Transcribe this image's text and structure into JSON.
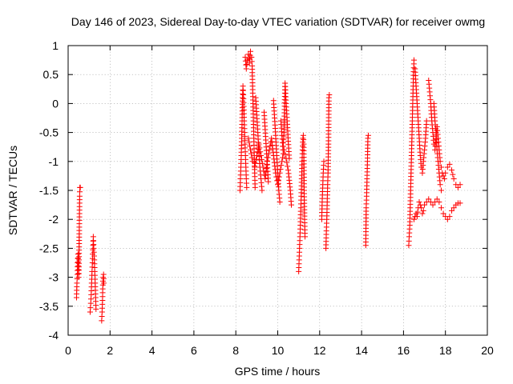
{
  "chart_data": {
    "type": "scatter",
    "title": "Day 146 of 2023, Sidereal Day-to-day VTEC variation (SDTVAR) for receiver owmg",
    "xlabel": "GPS time / hours",
    "ylabel": "SDTVAR / TECUs",
    "xlim": [
      0,
      20
    ],
    "ylim": [
      -4,
      1
    ],
    "xticks": [
      0,
      2,
      4,
      6,
      8,
      10,
      12,
      14,
      16,
      18,
      20
    ],
    "xtick_labels": [
      "0",
      "2",
      "4",
      "6",
      "8",
      "10",
      "12",
      "14",
      "16",
      "18",
      "20"
    ],
    "yticks": [
      1,
      0.5,
      0,
      -0.5,
      -1,
      -1.5,
      -2,
      -2.5,
      -3,
      -3.5,
      -4
    ],
    "ytick_labels": [
      "1",
      "0.5",
      "0",
      "-0.5",
      "-1",
      "-1.5",
      "-2",
      "-2.5",
      "-3",
      "-3.5",
      "-4"
    ],
    "grid": true,
    "marker": "+",
    "color": "#ff0000",
    "series": [
      {
        "name": "SDTVAR",
        "segments": [
          [
            [
              0.4,
              -3.35
            ],
            [
              0.42,
              -3.1
            ],
            [
              0.44,
              -2.95
            ],
            [
              0.45,
              -2.75
            ],
            [
              0.47,
              -2.6
            ],
            [
              0.49,
              -2.8
            ],
            [
              0.5,
              -3.0
            ],
            [
              0.52,
              -2.7
            ],
            [
              0.53,
              -2.25
            ],
            [
              0.54,
              -1.9
            ],
            [
              0.55,
              -1.6
            ],
            [
              0.56,
              -1.45
            ],
            [
              0.58,
              -1.45
            ]
          ],
          [
            [
              1.05,
              -3.6
            ],
            [
              1.08,
              -3.45
            ],
            [
              1.1,
              -3.3
            ],
            [
              1.12,
              -3.1
            ],
            [
              1.14,
              -2.9
            ],
            [
              1.16,
              -2.75
            ],
            [
              1.17,
              -2.6
            ],
            [
              1.19,
              -2.45
            ],
            [
              1.2,
              -2.3
            ],
            [
              1.22,
              -2.5
            ],
            [
              1.25,
              -2.7
            ],
            [
              1.27,
              -2.9
            ],
            [
              1.29,
              -3.1
            ],
            [
              1.31,
              -3.35
            ],
            [
              1.33,
              -3.55
            ]
          ],
          [
            [
              1.6,
              -3.75
            ],
            [
              1.62,
              -3.6
            ],
            [
              1.64,
              -3.4
            ],
            [
              1.65,
              -3.2
            ],
            [
              1.67,
              -3.0
            ],
            [
              1.69,
              -2.95
            ],
            [
              1.7,
              -3.1
            ]
          ],
          [
            [
              8.2,
              -1.5
            ],
            [
              8.22,
              -1.3
            ],
            [
              8.24,
              -1.1
            ],
            [
              8.26,
              -0.9
            ],
            [
              8.28,
              -0.6
            ],
            [
              8.3,
              -0.3
            ],
            [
              8.32,
              0.1
            ],
            [
              8.34,
              0.3
            ],
            [
              8.36,
              0.15
            ],
            [
              8.38,
              -0.05
            ],
            [
              8.4,
              -0.3
            ],
            [
              8.42,
              -0.5
            ],
            [
              8.44,
              -0.7
            ],
            [
              8.46,
              -0.9
            ],
            [
              8.48,
              -1.1
            ],
            [
              8.5,
              -1.3
            ],
            [
              8.52,
              -1.45
            ]
          ],
          [
            [
              8.45,
              0.8
            ],
            [
              8.5,
              0.6
            ],
            [
              8.55,
              0.75
            ],
            [
              8.6,
              0.85
            ],
            [
              8.65,
              0.7
            ],
            [
              8.7,
              0.9
            ],
            [
              8.75,
              0.8
            ],
            [
              8.78,
              0.65
            ],
            [
              8.8,
              0.3
            ],
            [
              8.82,
              0.0
            ],
            [
              8.84,
              -0.3
            ],
            [
              8.86,
              -0.6
            ],
            [
              8.88,
              -0.9
            ],
            [
              8.9,
              -1.2
            ],
            [
              8.92,
              -1.45
            ]
          ],
          [
            [
              8.6,
              -0.6
            ],
            [
              8.7,
              -0.8
            ],
            [
              8.8,
              -1.0
            ],
            [
              8.9,
              -1.1
            ],
            [
              9.0,
              -0.9
            ],
            [
              9.1,
              -0.7
            ],
            [
              9.2,
              -0.9
            ],
            [
              9.3,
              -1.1
            ],
            [
              9.4,
              -1.3
            ],
            [
              9.5,
              -1.0
            ],
            [
              9.6,
              -0.8
            ],
            [
              9.7,
              -0.6
            ],
            [
              9.8,
              -0.9
            ],
            [
              9.9,
              -1.2
            ],
            [
              10.0,
              -1.4
            ],
            [
              10.1,
              -1.2
            ],
            [
              10.2,
              -1.0
            ],
            [
              10.3,
              -0.8
            ],
            [
              10.4,
              -0.95
            ],
            [
              10.5,
              -1.15
            ],
            [
              10.6,
              -1.5
            ],
            [
              10.65,
              -1.75
            ]
          ],
          [
            [
              8.95,
              0.1
            ],
            [
              9.0,
              -0.2
            ],
            [
              9.05,
              -0.5
            ],
            [
              9.1,
              -0.85
            ],
            [
              9.15,
              -1.1
            ],
            [
              9.2,
              -1.3
            ],
            [
              9.25,
              -1.5
            ]
          ],
          [
            [
              9.35,
              -0.15
            ],
            [
              9.4,
              -0.45
            ],
            [
              9.45,
              -0.75
            ],
            [
              9.5,
              -1.05
            ],
            [
              9.55,
              -1.35
            ]
          ],
          [
            [
              9.8,
              0.05
            ],
            [
              9.85,
              -0.25
            ],
            [
              9.9,
              -0.55
            ],
            [
              9.95,
              -0.9
            ],
            [
              10.0,
              -1.2
            ],
            [
              10.05,
              -1.5
            ],
            [
              10.1,
              -1.7
            ]
          ],
          [
            [
              10.15,
              -0.3
            ],
            [
              10.2,
              -0.55
            ],
            [
              10.25,
              -0.8
            ],
            [
              10.3,
              -0.5
            ],
            [
              10.35,
              0.35
            ],
            [
              10.4,
              0.0
            ],
            [
              10.45,
              -0.3
            ],
            [
              10.5,
              -0.65
            ],
            [
              10.55,
              -0.95
            ]
          ],
          [
            [
              11.0,
              -2.9
            ],
            [
              11.02,
              -2.7
            ],
            [
              11.04,
              -2.5
            ],
            [
              11.06,
              -2.3
            ],
            [
              11.08,
              -2.1
            ],
            [
              11.1,
              -1.8
            ],
            [
              11.12,
              -1.6
            ],
            [
              11.14,
              -1.3
            ],
            [
              11.16,
              -1.0
            ],
            [
              11.18,
              -0.8
            ],
            [
              11.2,
              -0.6
            ],
            [
              11.22,
              -0.55
            ],
            [
              11.24,
              -0.7
            ],
            [
              11.26,
              -1.5
            ],
            [
              11.28,
              -2.0
            ],
            [
              11.3,
              -2.3
            ]
          ],
          [
            [
              12.1,
              -2.0
            ],
            [
              12.12,
              -1.7
            ],
            [
              12.15,
              -1.4
            ],
            [
              12.17,
              -1.2
            ],
            [
              12.2,
              -1.0
            ]
          ],
          [
            [
              12.3,
              -2.5
            ],
            [
              12.32,
              -2.2
            ],
            [
              12.34,
              -2.0
            ],
            [
              12.36,
              -1.7
            ],
            [
              12.38,
              -1.4
            ],
            [
              12.4,
              -1.2
            ],
            [
              12.42,
              -0.7
            ],
            [
              12.44,
              0.1
            ],
            [
              12.46,
              0.15
            ]
          ],
          [
            [
              14.2,
              -2.45
            ],
            [
              14.22,
              -1.8
            ],
            [
              14.24,
              -1.6
            ],
            [
              14.26,
              -1.3
            ],
            [
              14.28,
              -1.0
            ],
            [
              14.3,
              -0.6
            ],
            [
              14.32,
              -0.55
            ]
          ],
          [
            [
              16.25,
              -2.45
            ],
            [
              16.27,
              -2.3
            ],
            [
              16.3,
              -2.1
            ],
            [
              16.32,
              -1.8
            ],
            [
              16.34,
              -1.5
            ],
            [
              16.36,
              -1.2
            ],
            [
              16.38,
              -0.9
            ],
            [
              16.4,
              -0.6
            ],
            [
              16.42,
              -0.3
            ],
            [
              16.44,
              0.0
            ],
            [
              16.46,
              0.3
            ],
            [
              16.48,
              0.55
            ],
            [
              16.5,
              0.75
            ]
          ],
          [
            [
              16.5,
              -2.0
            ],
            [
              16.55,
              -1.95
            ],
            [
              16.6,
              -1.9
            ],
            [
              16.65,
              -1.95
            ],
            [
              16.7,
              -1.8
            ],
            [
              16.75,
              -1.7
            ],
            [
              16.8,
              -1.75
            ],
            [
              16.85,
              -1.8
            ],
            [
              16.9,
              -1.9
            ],
            [
              16.95,
              -1.85
            ],
            [
              17.0,
              -1.75
            ],
            [
              17.1,
              -1.7
            ],
            [
              17.2,
              -1.65
            ],
            [
              17.3,
              -1.7
            ],
            [
              17.4,
              -1.75
            ],
            [
              17.5,
              -1.7
            ],
            [
              17.6,
              -1.65
            ],
            [
              17.7,
              -1.7
            ],
            [
              17.8,
              -1.8
            ],
            [
              17.9,
              -1.9
            ],
            [
              18.0,
              -1.95
            ],
            [
              18.1,
              -2.0
            ],
            [
              18.2,
              -1.95
            ],
            [
              18.3,
              -1.85
            ],
            [
              18.4,
              -1.8
            ],
            [
              18.5,
              -1.75
            ],
            [
              18.6,
              -1.72
            ],
            [
              18.7,
              -1.72
            ]
          ],
          [
            [
              16.55,
              0.6
            ],
            [
              16.6,
              0.3
            ],
            [
              16.65,
              0.0
            ],
            [
              16.7,
              -0.3
            ],
            [
              16.75,
              -0.6
            ],
            [
              16.8,
              -0.9
            ],
            [
              16.85,
              -1.1
            ],
            [
              16.9,
              -1.2
            ],
            [
              16.95,
              -1.0
            ],
            [
              17.0,
              -0.8
            ],
            [
              17.05,
              -0.6
            ],
            [
              17.1,
              -0.3
            ]
          ],
          [
            [
              17.2,
              0.4
            ],
            [
              17.25,
              0.2
            ],
            [
              17.3,
              0.0
            ],
            [
              17.35,
              -0.3
            ],
            [
              17.4,
              -0.5
            ],
            [
              17.45,
              -0.7
            ],
            [
              17.5,
              -0.8
            ],
            [
              17.55,
              -0.6
            ],
            [
              17.6,
              -0.4
            ],
            [
              17.65,
              -0.6
            ],
            [
              17.7,
              -0.8
            ],
            [
              17.75,
              -1.0
            ],
            [
              17.8,
              -1.1
            ],
            [
              17.85,
              -1.2
            ],
            [
              17.9,
              -1.25
            ],
            [
              17.95,
              -1.3
            ],
            [
              18.0,
              -1.2
            ],
            [
              18.1,
              -1.1
            ],
            [
              18.2,
              -1.05
            ],
            [
              18.3,
              -1.15
            ],
            [
              18.4,
              -1.3
            ],
            [
              18.5,
              -1.4
            ],
            [
              18.6,
              -1.45
            ],
            [
              18.7,
              -1.4
            ]
          ],
          [
            [
              17.45,
              0.0
            ],
            [
              17.5,
              -0.3
            ],
            [
              17.55,
              -0.5
            ],
            [
              17.6,
              -0.8
            ],
            [
              17.65,
              -1.0
            ],
            [
              17.7,
              -1.2
            ],
            [
              17.75,
              -1.4
            ],
            [
              17.8,
              -1.5
            ]
          ]
        ]
      }
    ]
  }
}
